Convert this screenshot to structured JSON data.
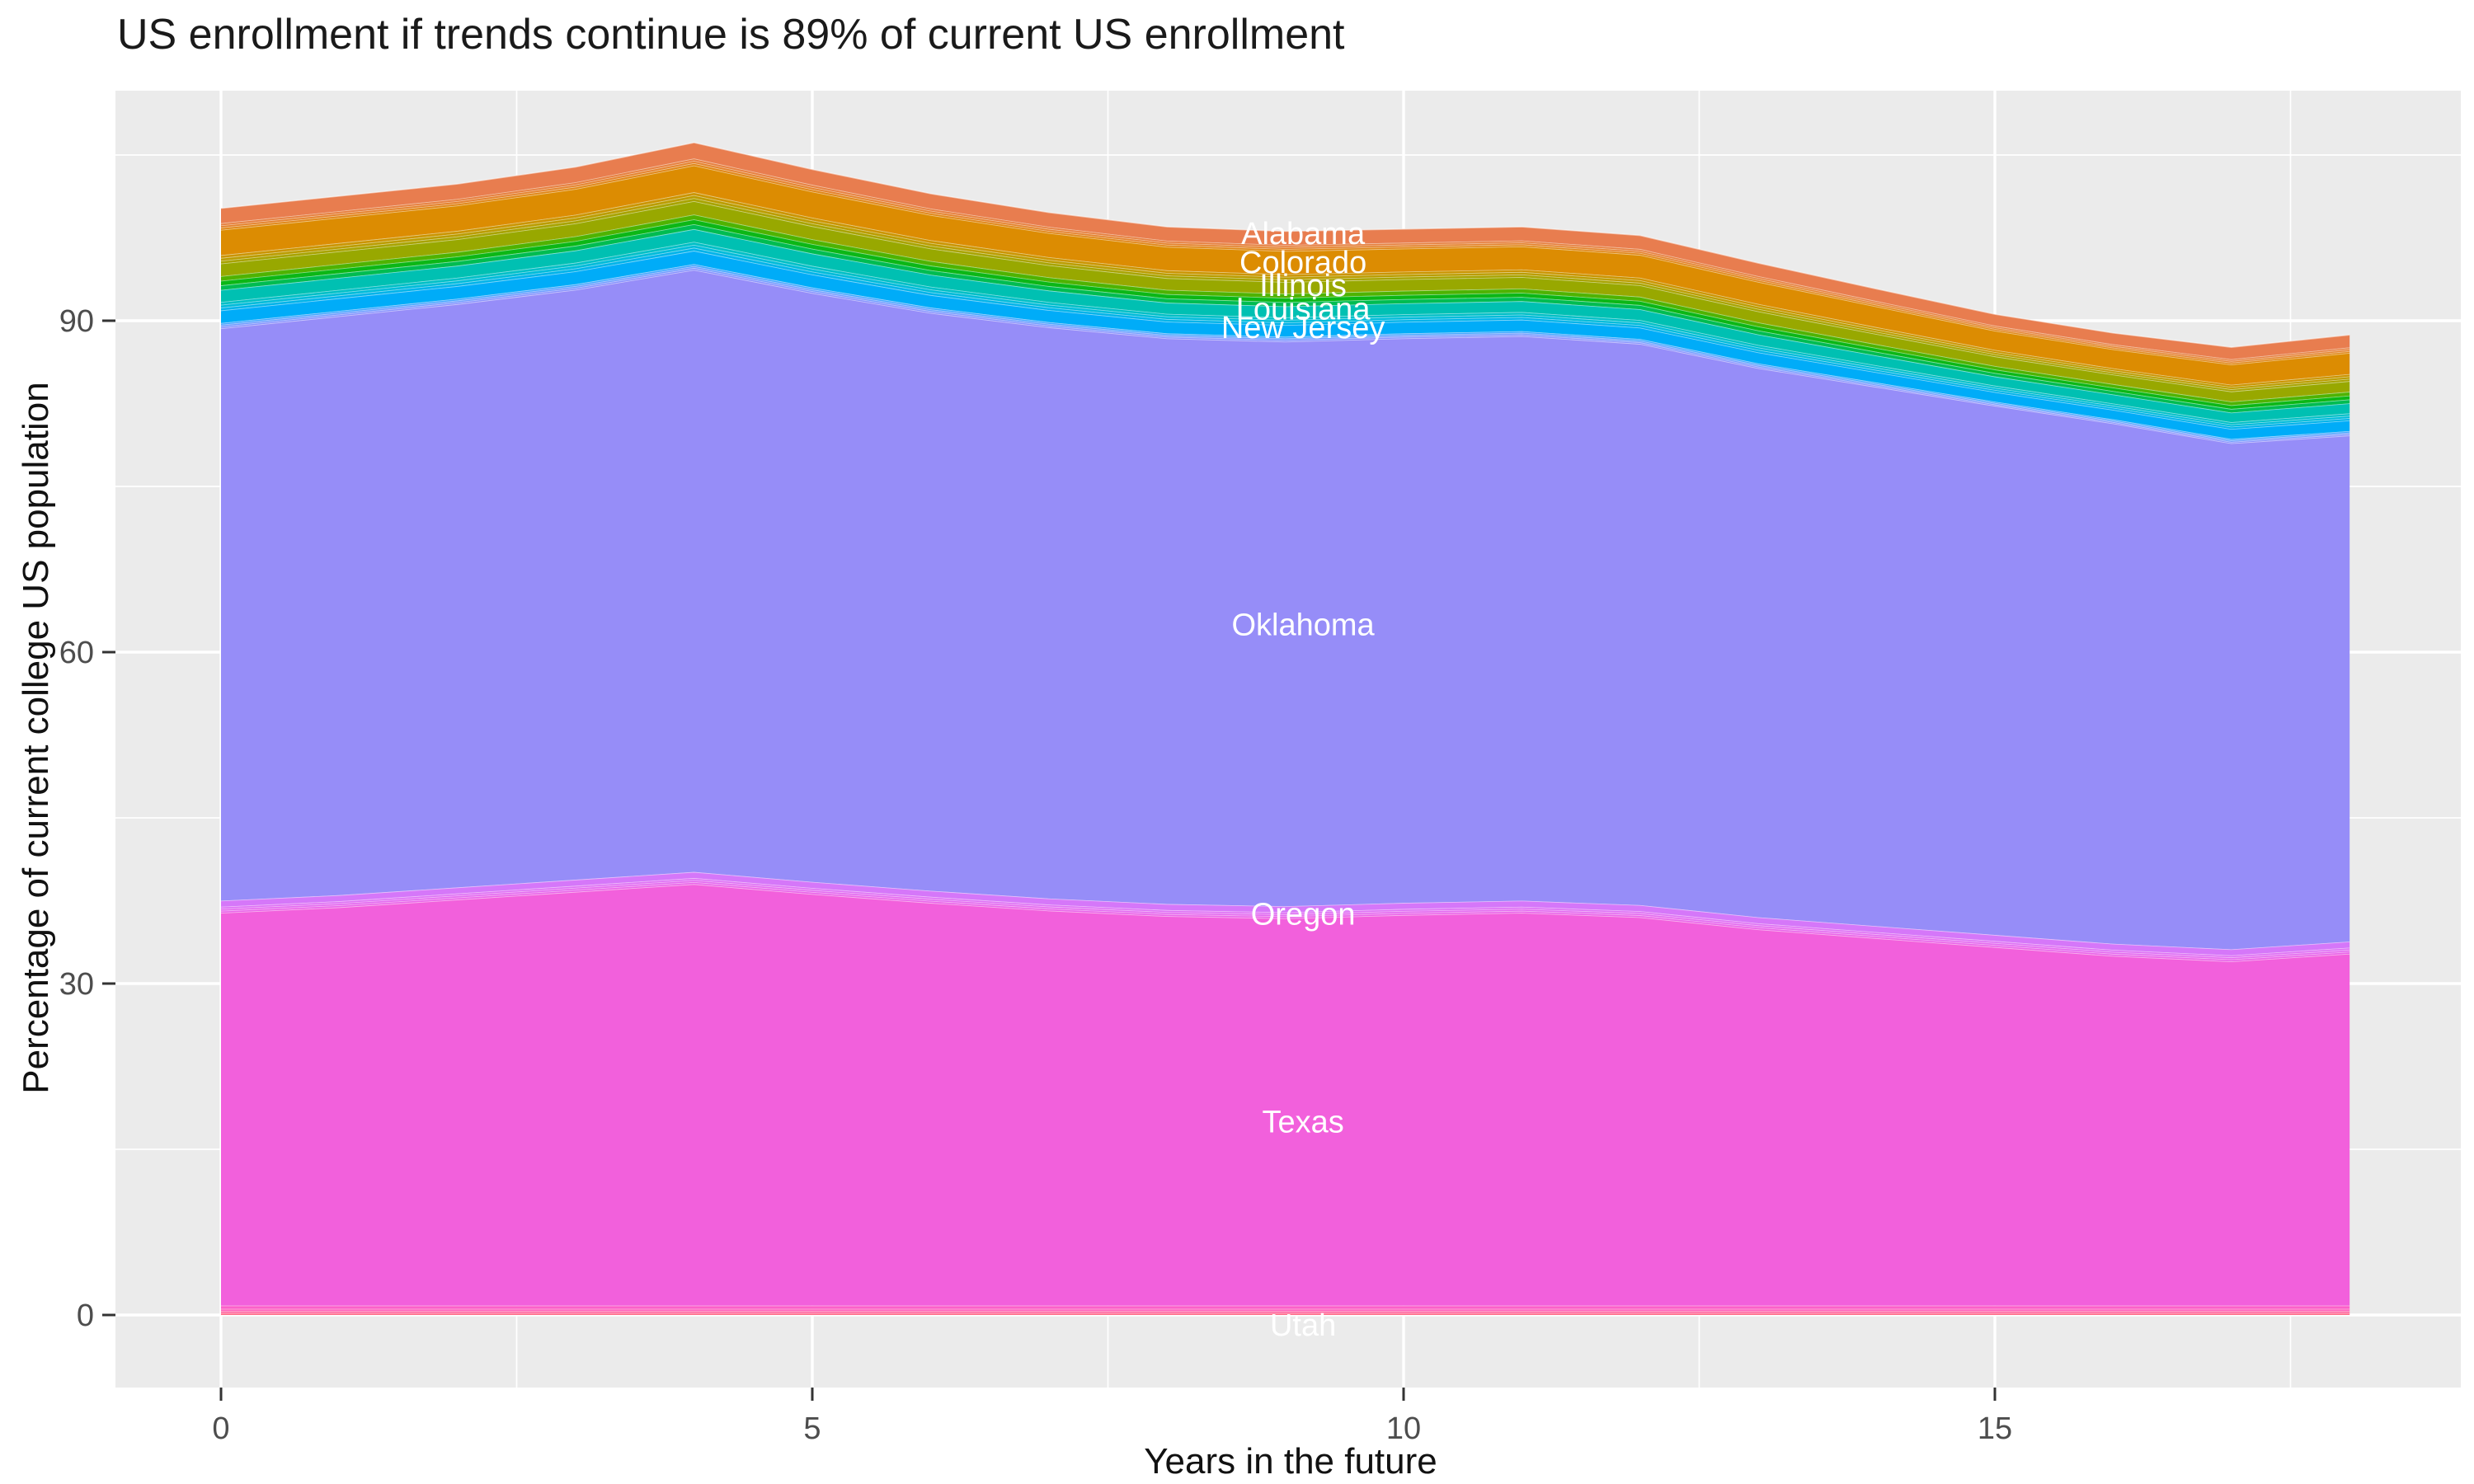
{
  "title": "US enrollment if trends continue is 89% of current US enrollment",
  "axes": {
    "x": {
      "label": "Years in the future",
      "ticks": [
        0,
        5,
        10,
        15
      ],
      "minor_ticks": [
        2.5,
        7.5,
        12.5,
        17.5
      ],
      "range": [
        0,
        18
      ]
    },
    "y": {
      "label": "Percentage of current college US population",
      "ticks": [
        0,
        30,
        60,
        90
      ],
      "minor_ticks": [
        15,
        45,
        75,
        105
      ],
      "range": [
        -5,
        111
      ]
    }
  },
  "style": {
    "panel_bg": "#EBEBEB",
    "gridline": "#FFFFFF",
    "tick_mark": "#333333",
    "tick_text": "#4D4D4D",
    "title_color": "#1A1A1A",
    "area_label_color": "#FFFFFF",
    "band_border": "rgba(255,255,255,0.5)"
  },
  "chart_data": {
    "type": "area",
    "stacked": true,
    "title": "US enrollment if trends continue is 89% of current US enrollment",
    "xlabel": "Years in the future",
    "ylabel": "Percentage of current college US population",
    "x": [
      0,
      1,
      2,
      3,
      4,
      5,
      6,
      7,
      8,
      9,
      10,
      11,
      12,
      13,
      14,
      15,
      16,
      17,
      18
    ],
    "series": [
      {
        "id": "band-below-utah",
        "label": null,
        "sub_colors": [
          "#FF6E8C",
          "#FF68A5",
          "#FF63BC"
        ],
        "values": [
          0.55,
          0.55,
          0.55,
          0.55,
          0.55,
          0.55,
          0.55,
          0.55,
          0.55,
          0.55,
          0.55,
          0.55,
          0.55,
          0.55,
          0.55,
          0.55,
          0.55,
          0.55,
          0.55
        ]
      },
      {
        "id": "utah",
        "label": "Utah",
        "color": "#FC61C9",
        "values": [
          0.3,
          0.3,
          0.3,
          0.3,
          0.3,
          0.3,
          0.3,
          0.3,
          0.3,
          0.3,
          0.3,
          0.3,
          0.3,
          0.3,
          0.3,
          0.3,
          0.3,
          0.3,
          0.3
        ]
      },
      {
        "id": "texas",
        "label": "Texas",
        "color": "#F260DC",
        "values": [
          35.55,
          36.05,
          36.75,
          37.45,
          38.15,
          37.25,
          36.45,
          35.75,
          35.25,
          35.05,
          35.35,
          35.55,
          35.15,
          34.05,
          33.25,
          32.45,
          31.65,
          31.15,
          31.85
        ]
      },
      {
        "id": "band-between-oregon-texas",
        "label": null,
        "sub_colors": [
          "#EA65E9",
          "#E46CF0",
          "#DE72F5"
        ],
        "values": [
          0.55,
          0.55,
          0.55,
          0.55,
          0.55,
          0.55,
          0.55,
          0.55,
          0.55,
          0.55,
          0.55,
          0.55,
          0.55,
          0.55,
          0.55,
          0.55,
          0.55,
          0.55,
          0.55
        ]
      },
      {
        "id": "oregon",
        "label": "Oregon",
        "color": "#D577F9",
        "values": [
          0.55,
          0.55,
          0.55,
          0.55,
          0.55,
          0.55,
          0.55,
          0.55,
          0.55,
          0.55,
          0.55,
          0.55,
          0.55,
          0.55,
          0.55,
          0.55,
          0.55,
          0.55,
          0.55
        ]
      },
      {
        "id": "oklahoma",
        "label": "Oklahoma",
        "color": "#968DF8",
        "values": [
          51.8,
          52.4,
          52.8,
          53.4,
          54.5,
          53.3,
          52.3,
          51.7,
          51.2,
          51.1,
          51.1,
          51.1,
          50.8,
          49.7,
          48.8,
          47.9,
          47.1,
          45.8,
          45.8
        ]
      },
      {
        "id": "band-between-newjersey-oklahoma",
        "label": null,
        "sub_colors": [
          "#8692FE",
          "#6D9DFF",
          "#3FA7FF"
        ],
        "values": [
          0.49,
          0.49,
          0.49,
          0.5,
          0.52,
          0.5,
          0.49,
          0.47,
          0.45,
          0.45,
          0.45,
          0.45,
          0.44,
          0.43,
          0.4,
          0.37,
          0.37,
          0.39,
          0.41
        ]
      },
      {
        "id": "new-jersey",
        "label": "New Jersey",
        "color": "#00ACF8",
        "values": [
          1.14,
          1.14,
          1.14,
          1.17,
          1.21,
          1.18,
          1.13,
          1.09,
          1.06,
          1.05,
          1.04,
          1.04,
          1.03,
          1.0,
          0.93,
          0.87,
          0.86,
          0.91,
          0.96
        ]
      },
      {
        "id": "band-between-louisiana-newjersey",
        "label": null,
        "sub_colors": [
          "#00B3E9",
          "#00BBD9",
          "#00BFC6"
        ],
        "values": [
          0.76,
          0.76,
          0.76,
          0.78,
          0.81,
          0.78,
          0.76,
          0.73,
          0.71,
          0.7,
          0.69,
          0.69,
          0.69,
          0.67,
          0.62,
          0.58,
          0.57,
          0.61,
          0.64
        ]
      },
      {
        "id": "louisiana",
        "label": "Louisiana",
        "color": "#00C0B2",
        "values": [
          1.09,
          1.09,
          1.09,
          1.11,
          1.15,
          1.12,
          1.08,
          1.04,
          1.01,
          1.0,
          0.99,
          0.99,
          0.98,
          0.95,
          0.89,
          0.83,
          0.82,
          0.87,
          0.91
        ]
      },
      {
        "id": "band-between-illinois-louisiana",
        "label": null,
        "sub_colors": [
          "#00BC51",
          "#0CB716",
          "#4FB300"
        ],
        "values": [
          1.25,
          1.25,
          1.25,
          1.28,
          1.32,
          1.29,
          1.24,
          1.2,
          1.16,
          1.15,
          1.14,
          1.14,
          1.13,
          1.09,
          1.02,
          0.95,
          0.94,
          1.0,
          1.05
        ]
      },
      {
        "id": "illinois",
        "label": "Illinois",
        "color": "#98A800",
        "values": [
          1.14,
          1.14,
          1.14,
          1.17,
          1.21,
          1.18,
          1.13,
          1.09,
          1.06,
          1.05,
          1.04,
          1.04,
          1.03,
          1.0,
          0.93,
          0.87,
          0.86,
          0.91,
          0.96
        ]
      },
      {
        "id": "band-between-colorado-illinois",
        "label": null,
        "sub_colors": [
          "#A8A300",
          "#BB9C00",
          "#CB9400"
        ],
        "values": [
          0.76,
          0.76,
          0.76,
          0.78,
          0.81,
          0.78,
          0.76,
          0.73,
          0.71,
          0.7,
          0.69,
          0.69,
          0.69,
          0.67,
          0.62,
          0.58,
          0.57,
          0.61,
          0.64
        ]
      },
      {
        "id": "colorado",
        "label": "Colorado",
        "color": "#DC8C02",
        "values": [
          2.29,
          2.29,
          2.29,
          2.33,
          2.42,
          2.35,
          2.27,
          2.18,
          2.12,
          2.1,
          2.08,
          2.08,
          2.06,
          2.0,
          1.87,
          1.74,
          1.72,
          1.83,
          1.91
        ]
      },
      {
        "id": "band-between-alabama-colorado",
        "label": null,
        "sub_colors": [
          "#E08617",
          "#E4822E",
          "#E67F3F"
        ],
        "values": [
          0.6,
          0.6,
          0.6,
          0.61,
          0.63,
          0.62,
          0.59,
          0.57,
          0.56,
          0.55,
          0.54,
          0.54,
          0.54,
          0.52,
          0.49,
          0.46,
          0.45,
          0.48,
          0.5
        ]
      },
      {
        "id": "alabama",
        "label": "Alabama",
        "color": "#E87D4F",
        "values": [
          1.36,
          1.36,
          1.36,
          1.39,
          1.44,
          1.4,
          1.35,
          1.3,
          1.26,
          1.25,
          1.24,
          1.24,
          1.23,
          1.19,
          1.11,
          1.04,
          1.03,
          1.09,
          1.14
        ]
      }
    ],
    "area_labels": [
      {
        "text": "Alabama",
        "x": 9.15,
        "y": 97.9
      },
      {
        "text": "Colorado",
        "x": 9.15,
        "y": 95.3
      },
      {
        "text": "Illinois",
        "x": 9.15,
        "y": 93.2
      },
      {
        "text": "Louisiana",
        "x": 9.15,
        "y": 91.1
      },
      {
        "text": "New Jersey",
        "x": 9.15,
        "y": 89.4
      },
      {
        "text": "Oklahoma",
        "x": 9.15,
        "y": 62.5
      },
      {
        "text": "Oregon",
        "x": 9.15,
        "y": 36.3
      },
      {
        "text": "Texas",
        "x": 9.15,
        "y": 17.5
      },
      {
        "text": "Utah",
        "x": 9.15,
        "y": -0.9
      }
    ],
    "legend": "none",
    "grid": true
  }
}
